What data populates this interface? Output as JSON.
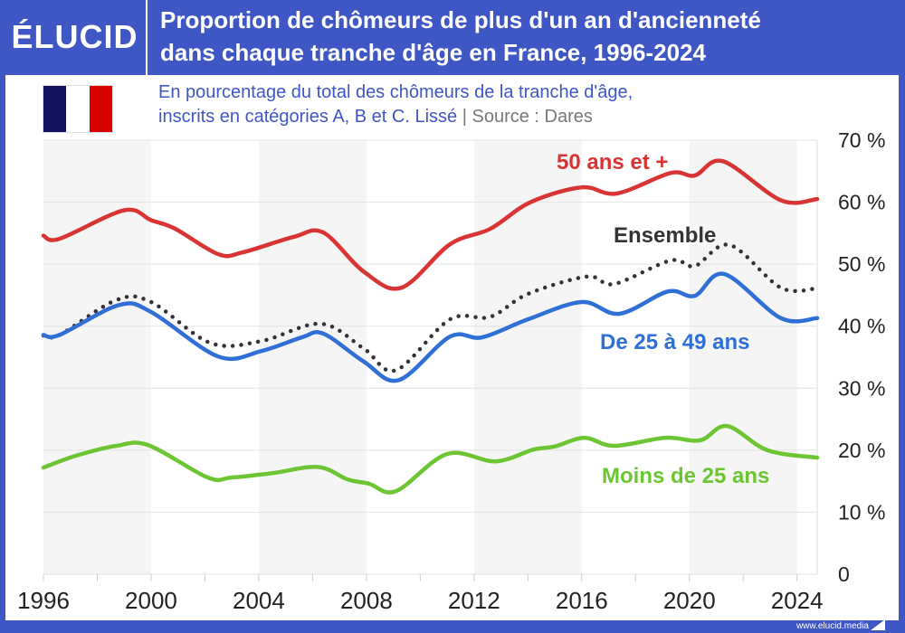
{
  "header": {
    "logo": "ÉLUCID",
    "title_line1": "Proportion de chômeurs de plus d'un an d'ancienneté",
    "title_line2": "dans chaque tranche d'âge en France, 1996-2024",
    "subtitle_line1": "En pourcentage du total des chômeurs de la tranche d'âge,",
    "subtitle_line2": "inscrits en catégories A, B et C. Lissé",
    "source_sep": "|",
    "source": "Source : Dares",
    "flag_colors": [
      "#13125e",
      "#ffffff",
      "#d90000"
    ]
  },
  "footer": {
    "url": "www.elucid.media"
  },
  "colors": {
    "frame": "#3f56c5",
    "stripe": "#f5f5f5",
    "grid": "#e3e3e3"
  },
  "chart_data": {
    "type": "line",
    "title": "Proportion de chômeurs de plus d'un an d'ancienneté dans chaque tranche d'âge en France, 1996-2024",
    "xlim": [
      1996,
      2024.75
    ],
    "ylim": [
      0,
      70
    ],
    "x_ticks": [
      1996,
      2000,
      2004,
      2008,
      2012,
      2016,
      2020,
      2024
    ],
    "x_tick_labels": [
      "1996",
      "2000",
      "2004",
      "2008",
      "2012",
      "2016",
      "2020",
      "2024"
    ],
    "y_ticks": [
      0,
      10,
      20,
      30,
      40,
      50,
      60,
      70
    ],
    "y_tick_labels": [
      "0",
      "10 %",
      "20 %",
      "30 %",
      "40 %",
      "50 %",
      "60 %",
      "70 %"
    ],
    "y_axis_position": "right",
    "grid": true,
    "legend": "inline labels",
    "series": [
      {
        "name": "50 ans et +",
        "color": "#d93434",
        "style": "solid",
        "points": [
          [
            1996,
            54.6
          ],
          [
            1996.6,
            54.1
          ],
          [
            1999,
            58.7
          ],
          [
            2000,
            57.1
          ],
          [
            2000.9,
            55.7
          ],
          [
            2002.5,
            51.6
          ],
          [
            2003.4,
            51.9
          ],
          [
            2005.3,
            54.4
          ],
          [
            2006.4,
            55.1
          ],
          [
            2007.9,
            48.8
          ],
          [
            2009.3,
            46.2
          ],
          [
            2011.1,
            53.2
          ],
          [
            2012.6,
            55.7
          ],
          [
            2014.1,
            60.0
          ],
          [
            2016,
            62.4
          ],
          [
            2017.3,
            61.4
          ],
          [
            2019.3,
            64.7
          ],
          [
            2020.2,
            64.3
          ],
          [
            2021.25,
            66.6
          ],
          [
            2023.4,
            60.3
          ],
          [
            2024.75,
            60.5
          ]
        ]
      },
      {
        "name": "Ensemble",
        "color": "#333333",
        "style": "dotted",
        "points": [
          [
            1996,
            38.5
          ],
          [
            1996.6,
            38.6
          ],
          [
            1998.7,
            44.2
          ],
          [
            2000,
            43.9
          ],
          [
            2002.2,
            37.3
          ],
          [
            2004.1,
            37.6
          ],
          [
            2006.3,
            40.4
          ],
          [
            2007.9,
            36.4
          ],
          [
            2009.1,
            32.9
          ],
          [
            2011.1,
            41.1
          ],
          [
            2012.6,
            41.5
          ],
          [
            2014,
            45.2
          ],
          [
            2016.2,
            48.0
          ],
          [
            2017.2,
            46.8
          ],
          [
            2019.3,
            50.6
          ],
          [
            2020.2,
            49.7
          ],
          [
            2021.5,
            53.1
          ],
          [
            2023.4,
            46.2
          ],
          [
            2024.75,
            46.1
          ]
        ]
      },
      {
        "name": "De 25 à 49 ans",
        "color": "#2f6fd6",
        "style": "solid",
        "points": [
          [
            1996,
            38.6
          ],
          [
            1996.6,
            38.6
          ],
          [
            1998.8,
            43.4
          ],
          [
            2000,
            42.3
          ],
          [
            2002.5,
            35.1
          ],
          [
            2004.1,
            36.0
          ],
          [
            2005.6,
            38.2
          ],
          [
            2006.4,
            38.8
          ],
          [
            2007.9,
            34.3
          ],
          [
            2009.2,
            31.3
          ],
          [
            2011.1,
            38.3
          ],
          [
            2012.3,
            38.2
          ],
          [
            2014,
            41.1
          ],
          [
            2016,
            43.9
          ],
          [
            2017.4,
            42.0
          ],
          [
            2019.2,
            45.6
          ],
          [
            2020.2,
            44.9
          ],
          [
            2021.3,
            48.4
          ],
          [
            2023.4,
            41.3
          ],
          [
            2024.75,
            41.3
          ]
        ]
      },
      {
        "name": "Moins de 25 ans",
        "color": "#6cc533",
        "style": "solid",
        "points": [
          [
            1996,
            17.2
          ],
          [
            1997.2,
            19.1
          ],
          [
            1998.7,
            20.7
          ],
          [
            1999.9,
            20.8
          ],
          [
            2002.1,
            15.6
          ],
          [
            2003,
            15.6
          ],
          [
            2004.5,
            16.3
          ],
          [
            2006.2,
            17.3
          ],
          [
            2007.3,
            15.3
          ],
          [
            2008.1,
            14.6
          ],
          [
            2009.1,
            13.4
          ],
          [
            2011,
            19.4
          ],
          [
            2012.8,
            18.2
          ],
          [
            2014.2,
            20.1
          ],
          [
            2015,
            20.6
          ],
          [
            2016.1,
            22.0
          ],
          [
            2017.2,
            20.7
          ],
          [
            2019.1,
            22.0
          ],
          [
            2020.4,
            21.6
          ],
          [
            2021.4,
            23.9
          ],
          [
            2022.9,
            20.0
          ],
          [
            2024.75,
            18.8
          ]
        ]
      }
    ]
  }
}
